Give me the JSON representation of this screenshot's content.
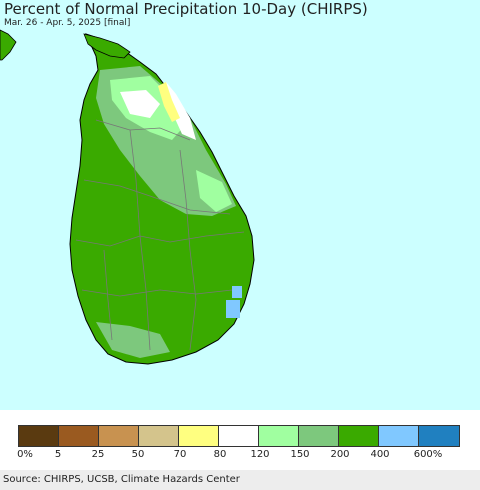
{
  "header": {
    "title": "Percent of Normal Precipitation 10-Day (CHIRPS)",
    "subtitle": "Mar. 26 - Apr. 5, 2025 [final]"
  },
  "colors": {
    "ocean": "#ccffff",
    "land_out_of_region": "#3aaa00",
    "class_0": "#5a3a10",
    "class_5": "#9a5a20",
    "class_25": "#c89250",
    "class_50": "#d4c48c",
    "class_70": "#ffff80",
    "class_80": "#ffffff",
    "class_120": "#a0ffa0",
    "class_150": "#7dc87d",
    "class_200": "#3aaa00",
    "class_400": "#80c8ff",
    "class_600": "#2080c0"
  },
  "legend": {
    "swatches": [
      "#5a3a10",
      "#9a5a20",
      "#c89250",
      "#d4c48c",
      "#ffff80",
      "#ffffff",
      "#a0ffa0",
      "#7dc87d",
      "#3aaa00",
      "#80c8ff",
      "#2080c0"
    ],
    "labels": [
      "0%",
      "5",
      "25",
      "50",
      "70",
      "80",
      "120",
      "150",
      "200",
      "400",
      "600%"
    ]
  },
  "footer": {
    "source": "Source: CHIRPS, UCSB, Climate Hazards Center"
  }
}
